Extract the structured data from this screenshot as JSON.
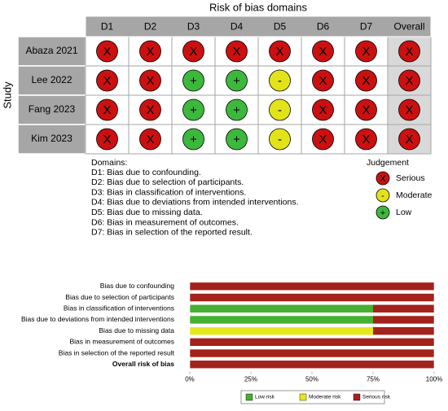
{
  "chart_data": [
    {
      "type": "traffic-light",
      "title": "Risk of bias domains",
      "y_label": "Study",
      "columns": [
        "D1",
        "D2",
        "D3",
        "D4",
        "D5",
        "D6",
        "D7",
        "Overall"
      ],
      "rows": [
        "Abaza 2021",
        "Lee 2022",
        "Fang 2023",
        "Kim 2023"
      ],
      "cells": [
        [
          "Serious",
          "Serious",
          "Serious",
          "Serious",
          "Serious",
          "Serious",
          "Serious",
          "Serious"
        ],
        [
          "Serious",
          "Serious",
          "Low",
          "Low",
          "Moderate",
          "Serious",
          "Serious",
          "Serious"
        ],
        [
          "Serious",
          "Serious",
          "Low",
          "Low",
          "Moderate",
          "Serious",
          "Serious",
          "Serious"
        ],
        [
          "Serious",
          "Serious",
          "Low",
          "Low",
          "Moderate",
          "Serious",
          "Serious",
          "Serious"
        ]
      ],
      "notes_title": "Domains:",
      "notes": [
        "D1: Bias due to confounding.",
        "D2: Bias due to selection of participants.",
        "D3: Bias in classification of interventions.",
        "D4: Bias due to deviations from intended interventions.",
        "D5: Bias due to missing data.",
        "D6: Bias in measurement of outcomes.",
        "D7: Bias in selection of the reported result."
      ],
      "legend_title": "Judgement",
      "legend": [
        {
          "name": "Serious",
          "symbol": "X",
          "color": "#cc1010"
        },
        {
          "name": "Moderate",
          "symbol": "-",
          "color": "#e3e31a"
        },
        {
          "name": "Low",
          "symbol": "+",
          "color": "#3cb83c"
        }
      ]
    },
    {
      "type": "stacked-bar",
      "categories": [
        "Bias due to confounding",
        "Bias due to selection of participants",
        "Bias in classification of interventions",
        "Bias due to deviations from intended interventions",
        "Bias due to missing data",
        "Bias in measurement of outcomes",
        "Bias in selection of the reported result",
        "Overall risk of bias"
      ],
      "series": [
        {
          "name": "Low risk",
          "color": "#45b02f",
          "values": [
            0,
            0,
            75,
            75,
            0,
            0,
            0,
            0
          ]
        },
        {
          "name": "Moderate risk",
          "color": "#e6e61e",
          "values": [
            0,
            0,
            0,
            0,
            75,
            0,
            0,
            0
          ]
        },
        {
          "name": "Serious risk",
          "color": "#a3221c",
          "values": [
            100,
            100,
            25,
            25,
            25,
            100,
            100,
            100
          ]
        }
      ],
      "xlim": [
        0,
        100
      ],
      "xticks": [
        {
          "value": 0,
          "label": "0%"
        },
        {
          "value": 25,
          "label": "25%"
        },
        {
          "value": 50,
          "label": "50%"
        },
        {
          "value": 75,
          "label": "75%"
        },
        {
          "value": 100,
          "label": "100%"
        }
      ]
    }
  ]
}
